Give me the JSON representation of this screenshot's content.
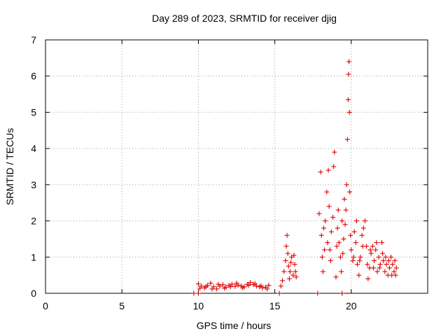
{
  "chart_data": {
    "type": "scatter",
    "title": "Day 289 of 2023, SRMTID for receiver djig",
    "xlabel": "GPS time / hours",
    "ylabel": "SRMTID / TECUs",
    "xlim": [
      0,
      25
    ],
    "ylim": [
      0,
      7
    ],
    "xticks": [
      0,
      5,
      10,
      15,
      20
    ],
    "yticks": [
      0,
      1,
      2,
      3,
      4,
      5,
      6,
      7
    ],
    "grid": true,
    "marker": "+",
    "color": "#e00000",
    "series": [
      {
        "name": "SRMTID",
        "points": [
          [
            9.7,
            0.0
          ],
          [
            10.0,
            0.0
          ],
          [
            15.3,
            0.0
          ],
          [
            17.8,
            0.0
          ],
          [
            19.4,
            0.0
          ],
          [
            10.0,
            0.26
          ],
          [
            10.2,
            0.2
          ],
          [
            10.4,
            0.15
          ],
          [
            10.6,
            0.22
          ],
          [
            10.8,
            0.28
          ],
          [
            11.0,
            0.18
          ],
          [
            11.2,
            0.12
          ],
          [
            11.4,
            0.2
          ],
          [
            11.6,
            0.24
          ],
          [
            11.8,
            0.17
          ],
          [
            12.0,
            0.22
          ],
          [
            12.2,
            0.25
          ],
          [
            12.4,
            0.19
          ],
          [
            12.6,
            0.23
          ],
          [
            12.8,
            0.2
          ],
          [
            13.0,
            0.18
          ],
          [
            13.2,
            0.25
          ],
          [
            13.4,
            0.3
          ],
          [
            13.6,
            0.24
          ],
          [
            13.8,
            0.2
          ],
          [
            14.0,
            0.18
          ],
          [
            14.2,
            0.15
          ],
          [
            14.4,
            0.17
          ],
          [
            14.6,
            0.22
          ],
          [
            10.1,
            0.14
          ],
          [
            10.5,
            0.18
          ],
          [
            10.9,
            0.12
          ],
          [
            11.3,
            0.25
          ],
          [
            11.7,
            0.14
          ],
          [
            12.1,
            0.18
          ],
          [
            12.5,
            0.28
          ],
          [
            12.9,
            0.15
          ],
          [
            13.3,
            0.22
          ],
          [
            13.7,
            0.27
          ],
          [
            14.1,
            0.21
          ],
          [
            14.5,
            0.12
          ],
          [
            15.4,
            0.2
          ],
          [
            15.5,
            0.35
          ],
          [
            15.6,
            0.6
          ],
          [
            15.7,
            0.9
          ],
          [
            15.75,
            1.3
          ],
          [
            15.8,
            1.6
          ],
          [
            15.85,
            1.1
          ],
          [
            15.9,
            0.75
          ],
          [
            16.0,
            0.6
          ],
          [
            16.1,
            1.0
          ],
          [
            16.2,
            0.5
          ],
          [
            16.3,
            0.8
          ],
          [
            16.4,
            0.45
          ],
          [
            15.95,
            0.4
          ],
          [
            16.05,
            0.85
          ],
          [
            16.25,
            1.05
          ],
          [
            16.35,
            0.6
          ],
          [
            17.9,
            2.2
          ],
          [
            18.0,
            3.35
          ],
          [
            18.05,
            1.6
          ],
          [
            18.1,
            1.0
          ],
          [
            18.15,
            0.6
          ],
          [
            18.2,
            1.8
          ],
          [
            18.3,
            2.0
          ],
          [
            18.4,
            2.8
          ],
          [
            18.45,
            1.4
          ],
          [
            18.5,
            3.4
          ],
          [
            18.55,
            2.4
          ],
          [
            18.6,
            1.2
          ],
          [
            18.7,
            1.7
          ],
          [
            18.8,
            2.1
          ],
          [
            18.85,
            3.5
          ],
          [
            18.9,
            3.9
          ],
          [
            19.0,
            0.45
          ],
          [
            19.05,
            1.3
          ],
          [
            19.1,
            1.8
          ],
          [
            19.2,
            1.4
          ],
          [
            19.3,
            1.0
          ],
          [
            19.35,
            0.6
          ],
          [
            19.4,
            2.0
          ],
          [
            19.5,
            1.5
          ],
          [
            19.55,
            2.6
          ],
          [
            19.6,
            1.9
          ],
          [
            19.65,
            2.3
          ],
          [
            19.7,
            3.0
          ],
          [
            19.75,
            4.25
          ],
          [
            19.8,
            5.35
          ],
          [
            19.82,
            6.05
          ],
          [
            19.85,
            6.4
          ],
          [
            19.88,
            5.0
          ],
          [
            19.9,
            2.8
          ],
          [
            19.95,
            1.6
          ],
          [
            20.0,
            1.2
          ],
          [
            20.1,
            0.9
          ],
          [
            20.2,
            1.7
          ],
          [
            20.3,
            1.4
          ],
          [
            20.4,
            0.8
          ],
          [
            20.5,
            0.5
          ],
          [
            20.6,
            1.0
          ],
          [
            20.7,
            1.6
          ],
          [
            20.8,
            1.8
          ],
          [
            20.9,
            2.0
          ],
          [
            21.0,
            1.3
          ],
          [
            21.1,
            0.4
          ],
          [
            21.2,
            0.7
          ],
          [
            21.3,
            1.1
          ],
          [
            21.4,
            1.3
          ],
          [
            21.5,
            0.9
          ],
          [
            21.6,
            1.2
          ],
          [
            21.7,
            0.6
          ],
          [
            21.8,
            1.0
          ],
          [
            21.9,
            0.8
          ],
          [
            22.0,
            1.4
          ],
          [
            22.1,
            0.9
          ],
          [
            22.2,
            0.6
          ],
          [
            22.3,
            0.8
          ],
          [
            22.4,
            0.5
          ],
          [
            22.5,
            0.7
          ],
          [
            22.6,
            1.0
          ],
          [
            22.7,
            0.8
          ],
          [
            22.8,
            0.6
          ],
          [
            22.9,
            0.5
          ],
          [
            22.95,
            0.7
          ],
          [
            18.25,
            1.2
          ],
          [
            18.65,
            0.9
          ],
          [
            19.15,
            2.3
          ],
          [
            19.45,
            1.1
          ],
          [
            20.15,
            1.0
          ],
          [
            20.35,
            2.0
          ],
          [
            20.55,
            0.9
          ],
          [
            20.75,
            1.3
          ],
          [
            21.05,
            0.8
          ],
          [
            21.25,
            1.2
          ],
          [
            21.45,
            0.7
          ],
          [
            21.65,
            1.4
          ],
          [
            21.85,
            0.7
          ],
          [
            22.05,
            1.1
          ],
          [
            22.25,
            1.0
          ],
          [
            22.45,
            0.9
          ],
          [
            22.65,
            0.5
          ],
          [
            22.85,
            0.9
          ]
        ]
      }
    ]
  }
}
